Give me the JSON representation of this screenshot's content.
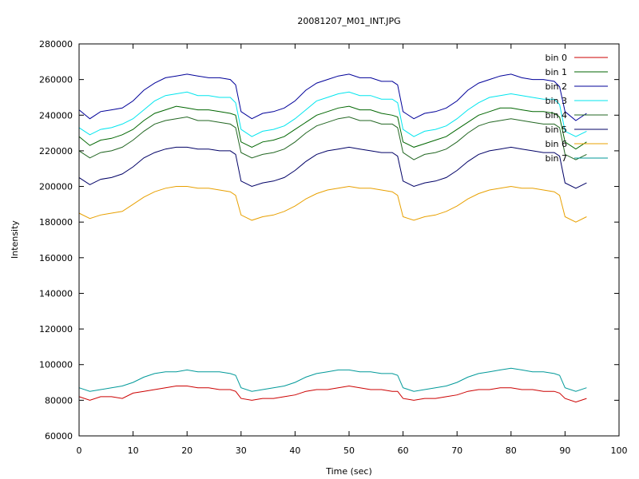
{
  "chart_data": {
    "type": "line",
    "title": "20081207_M01_INT.JPG",
    "xlabel": "Time (sec)",
    "ylabel": "Intensity",
    "xlim": [
      0,
      100
    ],
    "ylim": [
      60000,
      280000
    ],
    "xticks": [
      0,
      10,
      20,
      30,
      40,
      50,
      60,
      70,
      80,
      90,
      100
    ],
    "yticks": [
      60000,
      80000,
      100000,
      120000,
      140000,
      160000,
      180000,
      200000,
      220000,
      240000,
      260000,
      280000
    ],
    "grid": false,
    "legend_position": "top-right",
    "series": [
      {
        "name": "bin 0",
        "color": "#cc0000",
        "x": [
          0,
          2,
          4,
          6,
          8,
          10,
          12,
          14,
          16,
          18,
          20,
          22,
          24,
          26,
          28,
          29,
          30,
          32,
          34,
          36,
          38,
          40,
          42,
          44,
          46,
          48,
          50,
          52,
          54,
          56,
          58,
          59,
          60,
          62,
          64,
          66,
          68,
          70,
          72,
          74,
          76,
          78,
          80,
          82,
          84,
          86,
          88,
          89,
          90,
          92,
          94
        ],
        "values": [
          82000,
          80000,
          82000,
          82000,
          81000,
          84000,
          85000,
          86000,
          87000,
          88000,
          88000,
          87000,
          87000,
          86000,
          86000,
          85000,
          81000,
          80000,
          81000,
          81000,
          82000,
          83000,
          85000,
          86000,
          86000,
          87000,
          88000,
          87000,
          86000,
          86000,
          85000,
          85000,
          81000,
          80000,
          81000,
          81000,
          82000,
          83000,
          85000,
          86000,
          86000,
          87000,
          87000,
          86000,
          86000,
          85000,
          85000,
          84000,
          81000,
          79000,
          81000
        ]
      },
      {
        "name": "bin 1",
        "color": "#006600",
        "x": [
          0,
          2,
          4,
          6,
          8,
          10,
          12,
          14,
          16,
          18,
          20,
          22,
          24,
          26,
          28,
          29,
          30,
          32,
          34,
          36,
          38,
          40,
          42,
          44,
          46,
          48,
          50,
          52,
          54,
          56,
          58,
          59,
          60,
          62,
          64,
          66,
          68,
          70,
          72,
          74,
          76,
          78,
          80,
          82,
          84,
          86,
          88,
          89,
          90,
          92,
          94
        ],
        "values": [
          228000,
          223000,
          226000,
          227000,
          229000,
          232000,
          237000,
          241000,
          243000,
          245000,
          244000,
          243000,
          243000,
          242000,
          241000,
          240000,
          225000,
          222000,
          225000,
          226000,
          228000,
          232000,
          236000,
          240000,
          242000,
          244000,
          245000,
          243000,
          243000,
          241000,
          240000,
          239000,
          225000,
          222000,
          224000,
          226000,
          228000,
          232000,
          236000,
          240000,
          242000,
          244000,
          244000,
          243000,
          242000,
          242000,
          241000,
          239000,
          225000,
          221000,
          225000
        ]
      },
      {
        "name": "bin 2",
        "color": "#000099",
        "x": [
          0,
          2,
          4,
          6,
          8,
          10,
          12,
          14,
          16,
          18,
          20,
          22,
          24,
          26,
          28,
          29,
          30,
          32,
          34,
          36,
          38,
          40,
          42,
          44,
          46,
          48,
          50,
          52,
          54,
          56,
          58,
          59,
          60,
          62,
          64,
          66,
          68,
          70,
          72,
          74,
          76,
          78,
          80,
          82,
          84,
          86,
          88,
          89,
          90,
          92,
          94
        ],
        "values": [
          243000,
          238000,
          242000,
          243000,
          244000,
          248000,
          254000,
          258000,
          261000,
          262000,
          263000,
          262000,
          261000,
          261000,
          260000,
          257000,
          242000,
          238000,
          241000,
          242000,
          244000,
          248000,
          254000,
          258000,
          260000,
          262000,
          263000,
          261000,
          261000,
          259000,
          259000,
          257000,
          242000,
          238000,
          241000,
          242000,
          244000,
          248000,
          254000,
          258000,
          260000,
          262000,
          263000,
          261000,
          260000,
          260000,
          259000,
          256000,
          242000,
          237000,
          241000
        ]
      },
      {
        "name": "bin 3",
        "color": "#00e5ee",
        "x": [
          0,
          2,
          4,
          6,
          8,
          10,
          12,
          14,
          16,
          18,
          20,
          22,
          24,
          26,
          28,
          29,
          30,
          32,
          34,
          36,
          38,
          40,
          42,
          44,
          46,
          48,
          50,
          52,
          54,
          56,
          58,
          59,
          60,
          62,
          64,
          66,
          68,
          70,
          72,
          74,
          76,
          78,
          80,
          82,
          84,
          86,
          88,
          89,
          90,
          92,
          94
        ],
        "values": [
          233000,
          229000,
          232000,
          233000,
          235000,
          238000,
          243000,
          248000,
          251000,
          252000,
          253000,
          251000,
          251000,
          250000,
          250000,
          247000,
          232000,
          228000,
          231000,
          232000,
          234000,
          238000,
          243000,
          248000,
          250000,
          252000,
          253000,
          251000,
          251000,
          249000,
          249000,
          247000,
          232000,
          228000,
          231000,
          232000,
          234000,
          238000,
          243000,
          247000,
          250000,
          251000,
          252000,
          251000,
          250000,
          249000,
          249000,
          246000,
          231000,
          228000,
          231000
        ]
      },
      {
        "name": "bin 4",
        "color": "#226622",
        "x": [
          0,
          2,
          4,
          6,
          8,
          10,
          12,
          14,
          16,
          18,
          20,
          22,
          24,
          26,
          28,
          29,
          30,
          32,
          34,
          36,
          38,
          40,
          42,
          44,
          46,
          48,
          50,
          52,
          54,
          56,
          58,
          59,
          60,
          62,
          64,
          66,
          68,
          70,
          72,
          74,
          76,
          78,
          80,
          82,
          84,
          86,
          88,
          89,
          90,
          92,
          94
        ],
        "values": [
          220000,
          216000,
          219000,
          220000,
          222000,
          226000,
          231000,
          235000,
          237000,
          238000,
          239000,
          237000,
          237000,
          236000,
          235000,
          233000,
          219000,
          216000,
          218000,
          219000,
          221000,
          225000,
          230000,
          234000,
          236000,
          238000,
          239000,
          237000,
          237000,
          235000,
          235000,
          233000,
          219000,
          215000,
          218000,
          219000,
          221000,
          225000,
          230000,
          234000,
          236000,
          237000,
          238000,
          237000,
          236000,
          235000,
          235000,
          233000,
          218000,
          215000,
          218000
        ]
      },
      {
        "name": "bin 5",
        "color": "#000066",
        "x": [
          0,
          2,
          4,
          6,
          8,
          10,
          12,
          14,
          16,
          18,
          20,
          22,
          24,
          26,
          28,
          29,
          30,
          32,
          34,
          36,
          38,
          40,
          42,
          44,
          46,
          48,
          50,
          52,
          54,
          56,
          58,
          59,
          60,
          62,
          64,
          66,
          68,
          70,
          72,
          74,
          76,
          78,
          80,
          82,
          84,
          86,
          88,
          89,
          90,
          92,
          94
        ],
        "values": [
          205000,
          201000,
          204000,
          205000,
          207000,
          211000,
          216000,
          219000,
          221000,
          222000,
          222000,
          221000,
          221000,
          220000,
          220000,
          218000,
          203000,
          200000,
          202000,
          203000,
          205000,
          209000,
          214000,
          218000,
          220000,
          221000,
          222000,
          221000,
          220000,
          219000,
          219000,
          217000,
          203000,
          200000,
          202000,
          203000,
          205000,
          209000,
          214000,
          218000,
          220000,
          221000,
          222000,
          221000,
          220000,
          219000,
          219000,
          217000,
          202000,
          199000,
          202000
        ]
      },
      {
        "name": "bin 6",
        "color": "#e8a000",
        "x": [
          0,
          2,
          4,
          6,
          8,
          10,
          12,
          14,
          16,
          18,
          20,
          22,
          24,
          26,
          28,
          29,
          30,
          32,
          34,
          36,
          38,
          40,
          42,
          44,
          46,
          48,
          50,
          52,
          54,
          56,
          58,
          59,
          60,
          62,
          64,
          66,
          68,
          70,
          72,
          74,
          76,
          78,
          80,
          82,
          84,
          86,
          88,
          89,
          90,
          92,
          94
        ],
        "values": [
          185000,
          182000,
          184000,
          185000,
          186000,
          190000,
          194000,
          197000,
          199000,
          200000,
          200000,
          199000,
          199000,
          198000,
          197000,
          195000,
          184000,
          181000,
          183000,
          184000,
          186000,
          189000,
          193000,
          196000,
          198000,
          199000,
          200000,
          199000,
          199000,
          198000,
          197000,
          195000,
          183000,
          181000,
          183000,
          184000,
          186000,
          189000,
          193000,
          196000,
          198000,
          199000,
          200000,
          199000,
          199000,
          198000,
          197000,
          195000,
          183000,
          180000,
          183000
        ]
      },
      {
        "name": "bin 7",
        "color": "#009999",
        "x": [
          0,
          2,
          4,
          6,
          8,
          10,
          12,
          14,
          16,
          18,
          20,
          22,
          24,
          26,
          28,
          29,
          30,
          32,
          34,
          36,
          38,
          40,
          42,
          44,
          46,
          48,
          50,
          52,
          54,
          56,
          58,
          59,
          60,
          62,
          64,
          66,
          68,
          70,
          72,
          74,
          76,
          78,
          80,
          82,
          84,
          86,
          88,
          89,
          90,
          92,
          94
        ],
        "values": [
          87000,
          85000,
          86000,
          87000,
          88000,
          90000,
          93000,
          95000,
          96000,
          96000,
          97000,
          96000,
          96000,
          96000,
          95000,
          94000,
          87000,
          85000,
          86000,
          87000,
          88000,
          90000,
          93000,
          95000,
          96000,
          97000,
          97000,
          96000,
          96000,
          95000,
          95000,
          94000,
          87000,
          85000,
          86000,
          87000,
          88000,
          90000,
          93000,
          95000,
          96000,
          97000,
          98000,
          97000,
          96000,
          96000,
          95000,
          94000,
          87000,
          85000,
          87000
        ]
      }
    ]
  }
}
